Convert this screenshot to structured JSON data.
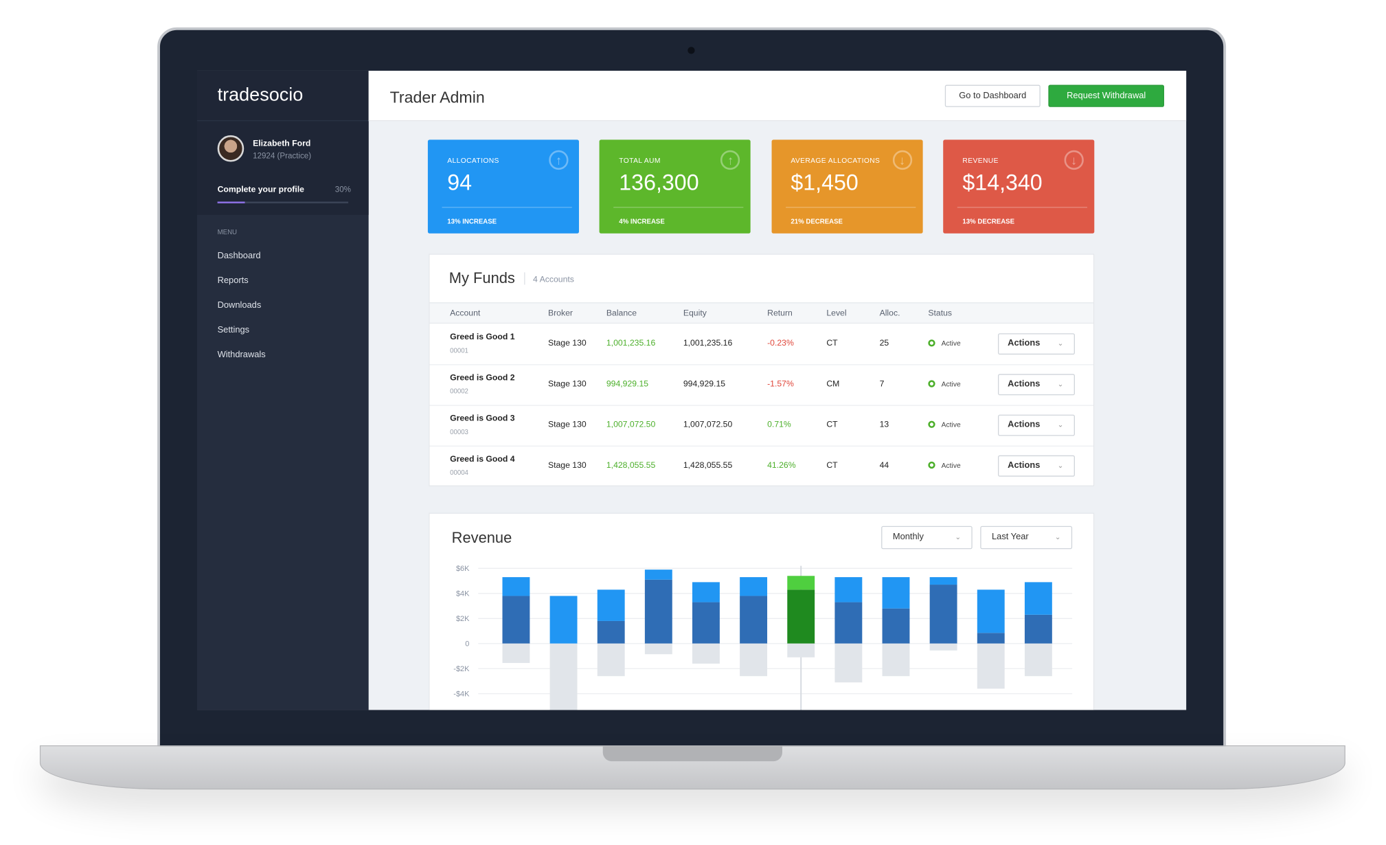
{
  "app": {
    "logo": "tradesocio",
    "title": "Trader Admin",
    "buttons": [
      "Go to Dashboard",
      "Request Withdrawal"
    ]
  },
  "profile": {
    "name": "Elizabeth Ford",
    "account": "12924 (Practice)",
    "progress_label": "Complete your profile",
    "progress": "30%"
  },
  "menu": {
    "label": "MENU",
    "items": [
      "Dashboard",
      "Reports",
      "Downloads",
      "Settings",
      "Withdrawals"
    ]
  },
  "cards": [
    {
      "label": "ALLOCATIONS",
      "value": "94",
      "change": "13% INCREASE"
    },
    {
      "label": "TOTAL AUM",
      "value": "136,300",
      "change": "4% INCREASE"
    },
    {
      "label": "AVERAGE ALLOCATIONS",
      "value": "$1,450",
      "change": "21% DECREASE"
    },
    {
      "label": "REVENUE",
      "value": "$14,340",
      "change": "13% DECREASE"
    }
  ],
  "funds": {
    "title": "My Funds",
    "count": "4 Accounts",
    "columns": [
      "Account",
      "Broker",
      "Balance",
      "Equity",
      "Return",
      "Level",
      "Alloc.",
      "Status"
    ],
    "rows": [
      [
        "Greed is Good 1",
        "00001",
        "Stage 130",
        "1,001,235.16",
        "1,001,235.16",
        "-0.23%",
        "CT",
        "25",
        "Active",
        "Actions"
      ],
      [
        "Greed is Good 2",
        "00002",
        "Stage 130",
        "994,929.15",
        "994,929.15",
        "-1.57%",
        "CM",
        "7",
        "Active",
        "Actions"
      ],
      [
        "Greed is Good 3",
        "00003",
        "Stage 130",
        "1,007,072.50",
        "1,007,072.50",
        "0.71%",
        "CT",
        "13",
        "Active",
        "Actions"
      ],
      [
        "Greed is Good 4",
        "00004",
        "Stage 130",
        "1,428,055.55",
        "1,428,055.55",
        "41.26%",
        "CT",
        "44",
        "Active",
        "Actions"
      ]
    ]
  },
  "chart_data": {
    "type": "stacked-bar",
    "title": "Revenue",
    "controls": [
      "Monthly",
      "Last Year"
    ],
    "categories": [
      null,
      null,
      null,
      null,
      null,
      null,
      null,
      null,
      null,
      null,
      null,
      null
    ],
    "series": [
      {
        "color": "#2f6db5",
        "values": [
          3800,
          0,
          1800,
          5100,
          3300,
          3800,
          4300,
          3300,
          2800,
          4700,
          850,
          2300
        ]
      },
      {
        "color": "#2196f3",
        "values": [
          1500,
          3800,
          2500,
          800,
          1600,
          1500,
          1100,
          2000,
          2500,
          600,
          3450,
          2600
        ]
      },
      {
        "color": "#e1e5ea",
        "values": [
          -1550,
          -5300,
          -2600,
          -850,
          -1600,
          -2600,
          -1100,
          -3100,
          -2600,
          -550,
          -3600,
          -2600
        ]
      }
    ],
    "highlight": {
      "index": 6,
      "colors": [
        "#1f8a1f",
        "#4fcf3f",
        "#e1e5ea"
      ]
    },
    "ylim": [
      -5300,
      6200
    ],
    "yticks": [
      {
        "value": 6000,
        "label": "$6K"
      },
      {
        "value": 4000,
        "label": "$4K"
      },
      {
        "value": 2000,
        "label": "$2K"
      },
      0,
      {
        "value": -2000,
        "label": "-$2K"
      },
      {
        "value": -4000,
        "label": "-$4K"
      }
    ],
    "grid": true
  }
}
